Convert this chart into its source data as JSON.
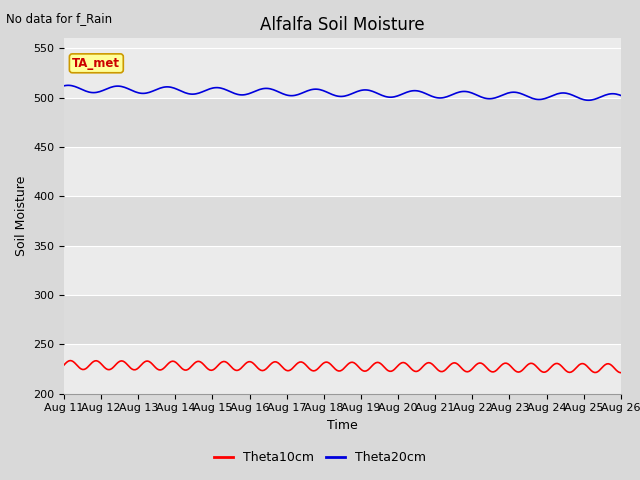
{
  "title": "Alfalfa Soil Moisture",
  "subtitle": "No data for f_Rain",
  "xlabel": "Time",
  "ylabel": "Soil Moisture",
  "ylim": [
    200,
    560
  ],
  "yticks": [
    200,
    250,
    300,
    350,
    400,
    450,
    500,
    550
  ],
  "x_labels": [
    "Aug 11",
    "Aug 12",
    "Aug 13",
    "Aug 14",
    "Aug 15",
    "Aug 16",
    "Aug 17",
    "Aug 18",
    "Aug 19",
    "Aug 20",
    "Aug 21",
    "Aug 22",
    "Aug 23",
    "Aug 24",
    "Aug 25",
    "Aug 26"
  ],
  "theta10_base": 229,
  "theta10_amp": 4.5,
  "theta10_freq": 1.45,
  "theta10_trend": -0.22,
  "theta20_base": 509,
  "theta20_amp": 3.5,
  "theta20_freq": 0.75,
  "theta20_trend": -0.58,
  "theta10_color": "#ff0000",
  "theta20_color": "#0000dd",
  "bg_color": "#d9d9d9",
  "plot_bg_color": "#ebebeb",
  "plot_bg_color2": "#dcdcdc",
  "legend_theta10": "Theta10cm",
  "legend_theta20": "Theta20cm",
  "ta_met_label": "TA_met",
  "ta_met_bg": "#ffff99",
  "ta_met_border": "#cc9900",
  "ta_met_text_color": "#cc0000",
  "title_fontsize": 12,
  "axis_label_fontsize": 9,
  "tick_fontsize": 8,
  "linewidth": 1.2
}
